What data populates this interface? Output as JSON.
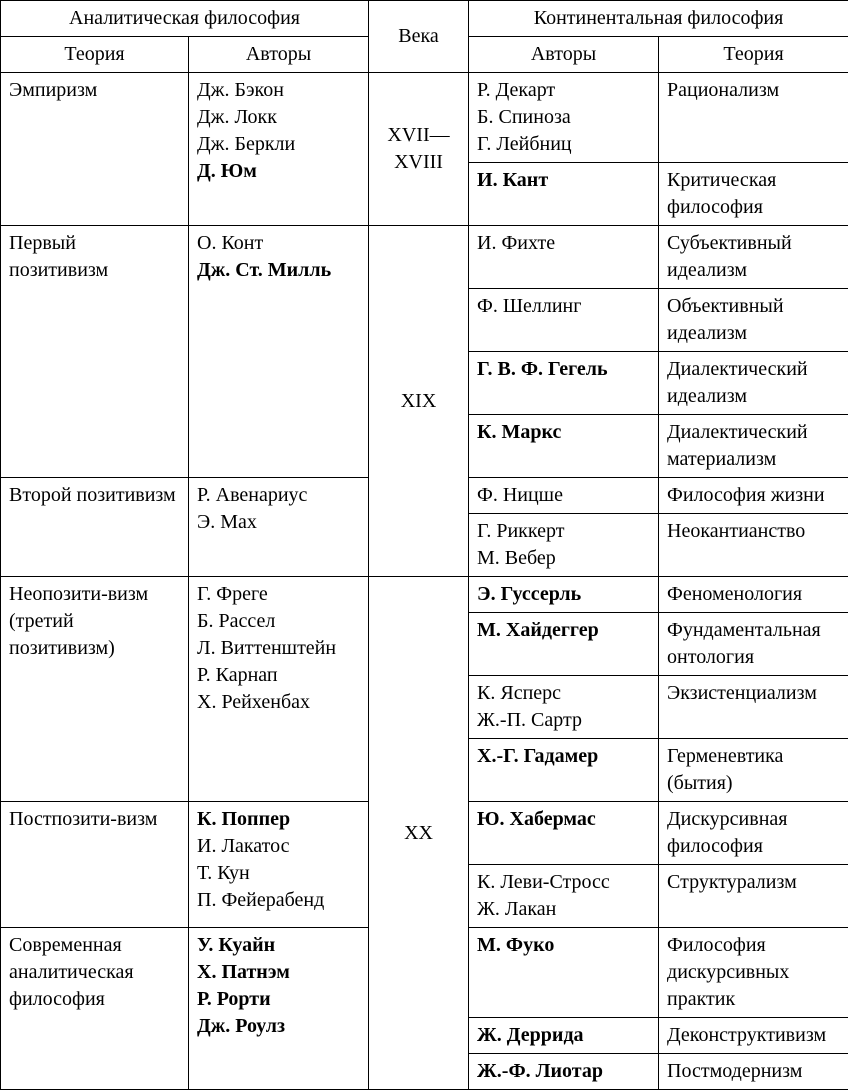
{
  "colWidths": {
    "c1": 188,
    "c2": 180,
    "c3": 100,
    "c4": 190,
    "c5": 190
  },
  "headers": {
    "analytic": "Аналитическая философия",
    "century": "Века",
    "continental": "Континентальная философия",
    "theory": "Теория",
    "authors": "Авторы"
  },
  "century": {
    "xvii_xviii": "XVII—\nXVIII",
    "xix": "XIX",
    "xx": "XX"
  },
  "analytic": {
    "empiricism": {
      "theory": "Эмпиризм",
      "authors": [
        {
          "t": "Дж. Бэкон",
          "b": false
        },
        {
          "t": "Дж. Локк",
          "b": false
        },
        {
          "t": "Дж. Беркли",
          "b": false
        },
        {
          "t": "Д. Юм",
          "b": true
        }
      ]
    },
    "positivism1": {
      "theory": "Первый позитивизм",
      "authors": [
        {
          "t": "О. Конт",
          "b": false
        },
        {
          "t": "Дж. Ст. Милль",
          "b": true
        }
      ]
    },
    "positivism2": {
      "theory": "Второй позитивизм",
      "authors": [
        {
          "t": "Р. Авенариус",
          "b": false
        },
        {
          "t": "Э. Мах",
          "b": false
        }
      ]
    },
    "neopositivism": {
      "theory": "Неопозити-визм (третий позитивизм)",
      "authors": [
        {
          "t": "Г. Фреге",
          "b": false
        },
        {
          "t": "Б. Рассел",
          "b": false
        },
        {
          "t": "Л. Виттенштейн",
          "b": false
        },
        {
          "t": "Р. Карнап",
          "b": false
        },
        {
          "t": "Х. Рейхенбах",
          "b": false
        }
      ]
    },
    "postpositivism": {
      "theory": "Постпозити-визм",
      "authors": [
        {
          "t": "К. Поппер",
          "b": true
        },
        {
          "t": "И. Лакатос",
          "b": false
        },
        {
          "t": "Т. Кун",
          "b": false
        },
        {
          "t": "П. Фейерабенд",
          "b": false
        }
      ]
    },
    "modern": {
      "theory": "Современная аналитическая философия",
      "authors": [
        {
          "t": "У. Куайн",
          "b": true
        },
        {
          "t": "Х. Патнэм",
          "b": true
        },
        {
          "t": "Р. Рорти",
          "b": true
        },
        {
          "t": "Дж. Роулз",
          "b": true
        }
      ]
    }
  },
  "continental": [
    {
      "authors": [
        {
          "t": "Р. Декарт",
          "b": false
        },
        {
          "t": "Б. Спиноза",
          "b": false
        },
        {
          "t": "Г. Лейбниц",
          "b": false
        }
      ],
      "theory": "Рационализм"
    },
    {
      "authors": [
        {
          "t": "И. Кант",
          "b": true
        }
      ],
      "theory": "Критическая философия"
    },
    {
      "authors": [
        {
          "t": "И. Фихте",
          "b": false
        }
      ],
      "theory": "Субъективный идеализм"
    },
    {
      "authors": [
        {
          "t": "Ф. Шеллинг",
          "b": false
        }
      ],
      "theory": "Объективный идеализм"
    },
    {
      "authors": [
        {
          "t": "Г. В. Ф. Гегель",
          "b": true
        }
      ],
      "theory": "Диалектический идеализм"
    },
    {
      "authors": [
        {
          "t": "К. Маркс",
          "b": true
        }
      ],
      "theory": "Диалектический материализм"
    },
    {
      "authors": [
        {
          "t": "Ф. Ницше",
          "b": false
        }
      ],
      "theory": "Философия жизни"
    },
    {
      "authors": [
        {
          "t": "Г. Риккерт",
          "b": false
        },
        {
          "t": "М. Вебер",
          "b": false
        }
      ],
      "theory": "Неокантианство"
    },
    {
      "authors": [
        {
          "t": "Э. Гуссерль",
          "b": true
        }
      ],
      "theory": "Феноменология"
    },
    {
      "authors": [
        {
          "t": "М. Хайдеггер",
          "b": true
        }
      ],
      "theory": "Фундаментальная онтология"
    },
    {
      "authors": [
        {
          "t": "К. Ясперс",
          "b": false
        },
        {
          "t": "Ж.-П. Сартр",
          "b": false
        }
      ],
      "theory": "Экзистенциализм"
    },
    {
      "authors": [
        {
          "t": "Х.-Г. Гадамер",
          "b": true
        }
      ],
      "theory": "Герменевтика (бытия)"
    },
    {
      "authors": [
        {
          "t": "Ю. Хабермас",
          "b": true
        }
      ],
      "theory": "Дискурсивная философия"
    },
    {
      "authors": [
        {
          "t": "К. Леви-Стросс",
          "b": false
        },
        {
          "t": "Ж. Лакан",
          "b": false
        }
      ],
      "theory": "Структурализм"
    },
    {
      "authors": [
        {
          "t": "М. Фуко",
          "b": true
        }
      ],
      "theory": "Философия дискурсивных практик"
    },
    {
      "authors": [
        {
          "t": "Ж. Деррида",
          "b": true
        }
      ],
      "theory": "Деконструктивизм"
    },
    {
      "authors": [
        {
          "t": "Ж.-Ф. Лиотар",
          "b": true
        }
      ],
      "theory": "Постмодернизм"
    }
  ]
}
